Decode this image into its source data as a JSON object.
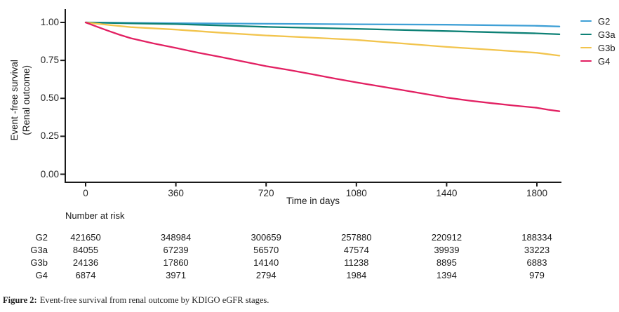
{
  "figure": {
    "caption_prefix": "Figure 2:",
    "caption_text": "Event-free survival from renal outcome by KDIGO eGFR stages."
  },
  "chart_data": {
    "type": "line",
    "subtype": "kaplan-meier-survival",
    "title": "",
    "xlabel": "Time in days",
    "ylabel_line1": "Event -free survival",
    "ylabel_line2": "(Renal outcome)",
    "xlim": [
      0,
      1890
    ],
    "ylim": [
      0.0,
      1.0
    ],
    "grid": false,
    "legend_position": "right",
    "axis_color": "#1a1a1a",
    "x_ticks": [
      "0",
      "360",
      "720",
      "1080",
      "1440",
      "1800"
    ],
    "x_tick_values": [
      0,
      360,
      720,
      1080,
      1440,
      1800
    ],
    "y_ticks": [
      "1.00",
      "0.75",
      "0.50",
      "0.25",
      "0.00"
    ],
    "y_tick_values": [
      1.0,
      0.75,
      0.5,
      0.25,
      0.0
    ],
    "series": [
      {
        "name": "G2",
        "color": "#3FA0D6",
        "points": [
          [
            0,
            1.0
          ],
          [
            180,
            0.997
          ],
          [
            360,
            0.995
          ],
          [
            720,
            0.991
          ],
          [
            1080,
            0.988
          ],
          [
            1440,
            0.985
          ],
          [
            1800,
            0.978
          ],
          [
            1890,
            0.973
          ]
        ]
      },
      {
        "name": "G3a",
        "color": "#0E8176",
        "points": [
          [
            0,
            1.0
          ],
          [
            180,
            0.994
          ],
          [
            360,
            0.989
          ],
          [
            720,
            0.971
          ],
          [
            1080,
            0.958
          ],
          [
            1440,
            0.943
          ],
          [
            1800,
            0.928
          ],
          [
            1890,
            0.922
          ]
        ]
      },
      {
        "name": "G3b",
        "color": "#F2C44D",
        "points": [
          [
            0,
            1.0
          ],
          [
            90,
            0.984
          ],
          [
            180,
            0.969
          ],
          [
            360,
            0.953
          ],
          [
            540,
            0.932
          ],
          [
            720,
            0.914
          ],
          [
            900,
            0.9
          ],
          [
            1080,
            0.885
          ],
          [
            1260,
            0.862
          ],
          [
            1440,
            0.839
          ],
          [
            1620,
            0.82
          ],
          [
            1800,
            0.8
          ],
          [
            1890,
            0.781
          ]
        ]
      },
      {
        "name": "G4",
        "color": "#E22062",
        "points": [
          [
            0,
            1.0
          ],
          [
            45,
            0.972
          ],
          [
            90,
            0.945
          ],
          [
            135,
            0.919
          ],
          [
            180,
            0.896
          ],
          [
            270,
            0.862
          ],
          [
            360,
            0.832
          ],
          [
            450,
            0.8
          ],
          [
            540,
            0.772
          ],
          [
            630,
            0.742
          ],
          [
            720,
            0.712
          ],
          [
            810,
            0.687
          ],
          [
            900,
            0.66
          ],
          [
            990,
            0.632
          ],
          [
            1080,
            0.605
          ],
          [
            1170,
            0.58
          ],
          [
            1260,
            0.555
          ],
          [
            1350,
            0.53
          ],
          [
            1440,
            0.505
          ],
          [
            1530,
            0.485
          ],
          [
            1620,
            0.468
          ],
          [
            1710,
            0.452
          ],
          [
            1800,
            0.438
          ],
          [
            1845,
            0.425
          ],
          [
            1890,
            0.415
          ]
        ]
      }
    ],
    "number_at_risk": {
      "label": "Number at risk",
      "time_points": [
        0,
        360,
        720,
        1080,
        1440,
        1800
      ],
      "rows": [
        {
          "name": "G2",
          "values": [
            "421650",
            "348984",
            "300659",
            "257880",
            "220912",
            "188334"
          ]
        },
        {
          "name": "G3a",
          "values": [
            "84055",
            "67239",
            "56570",
            "47574",
            "39939",
            "33223"
          ]
        },
        {
          "name": "G3b",
          "values": [
            "24136",
            "17860",
            "14140",
            "11238",
            "8895",
            "6883"
          ]
        },
        {
          "name": "G4",
          "values": [
            "6874",
            "3971",
            "2794",
            "1984",
            "1394",
            "979"
          ]
        }
      ]
    }
  }
}
